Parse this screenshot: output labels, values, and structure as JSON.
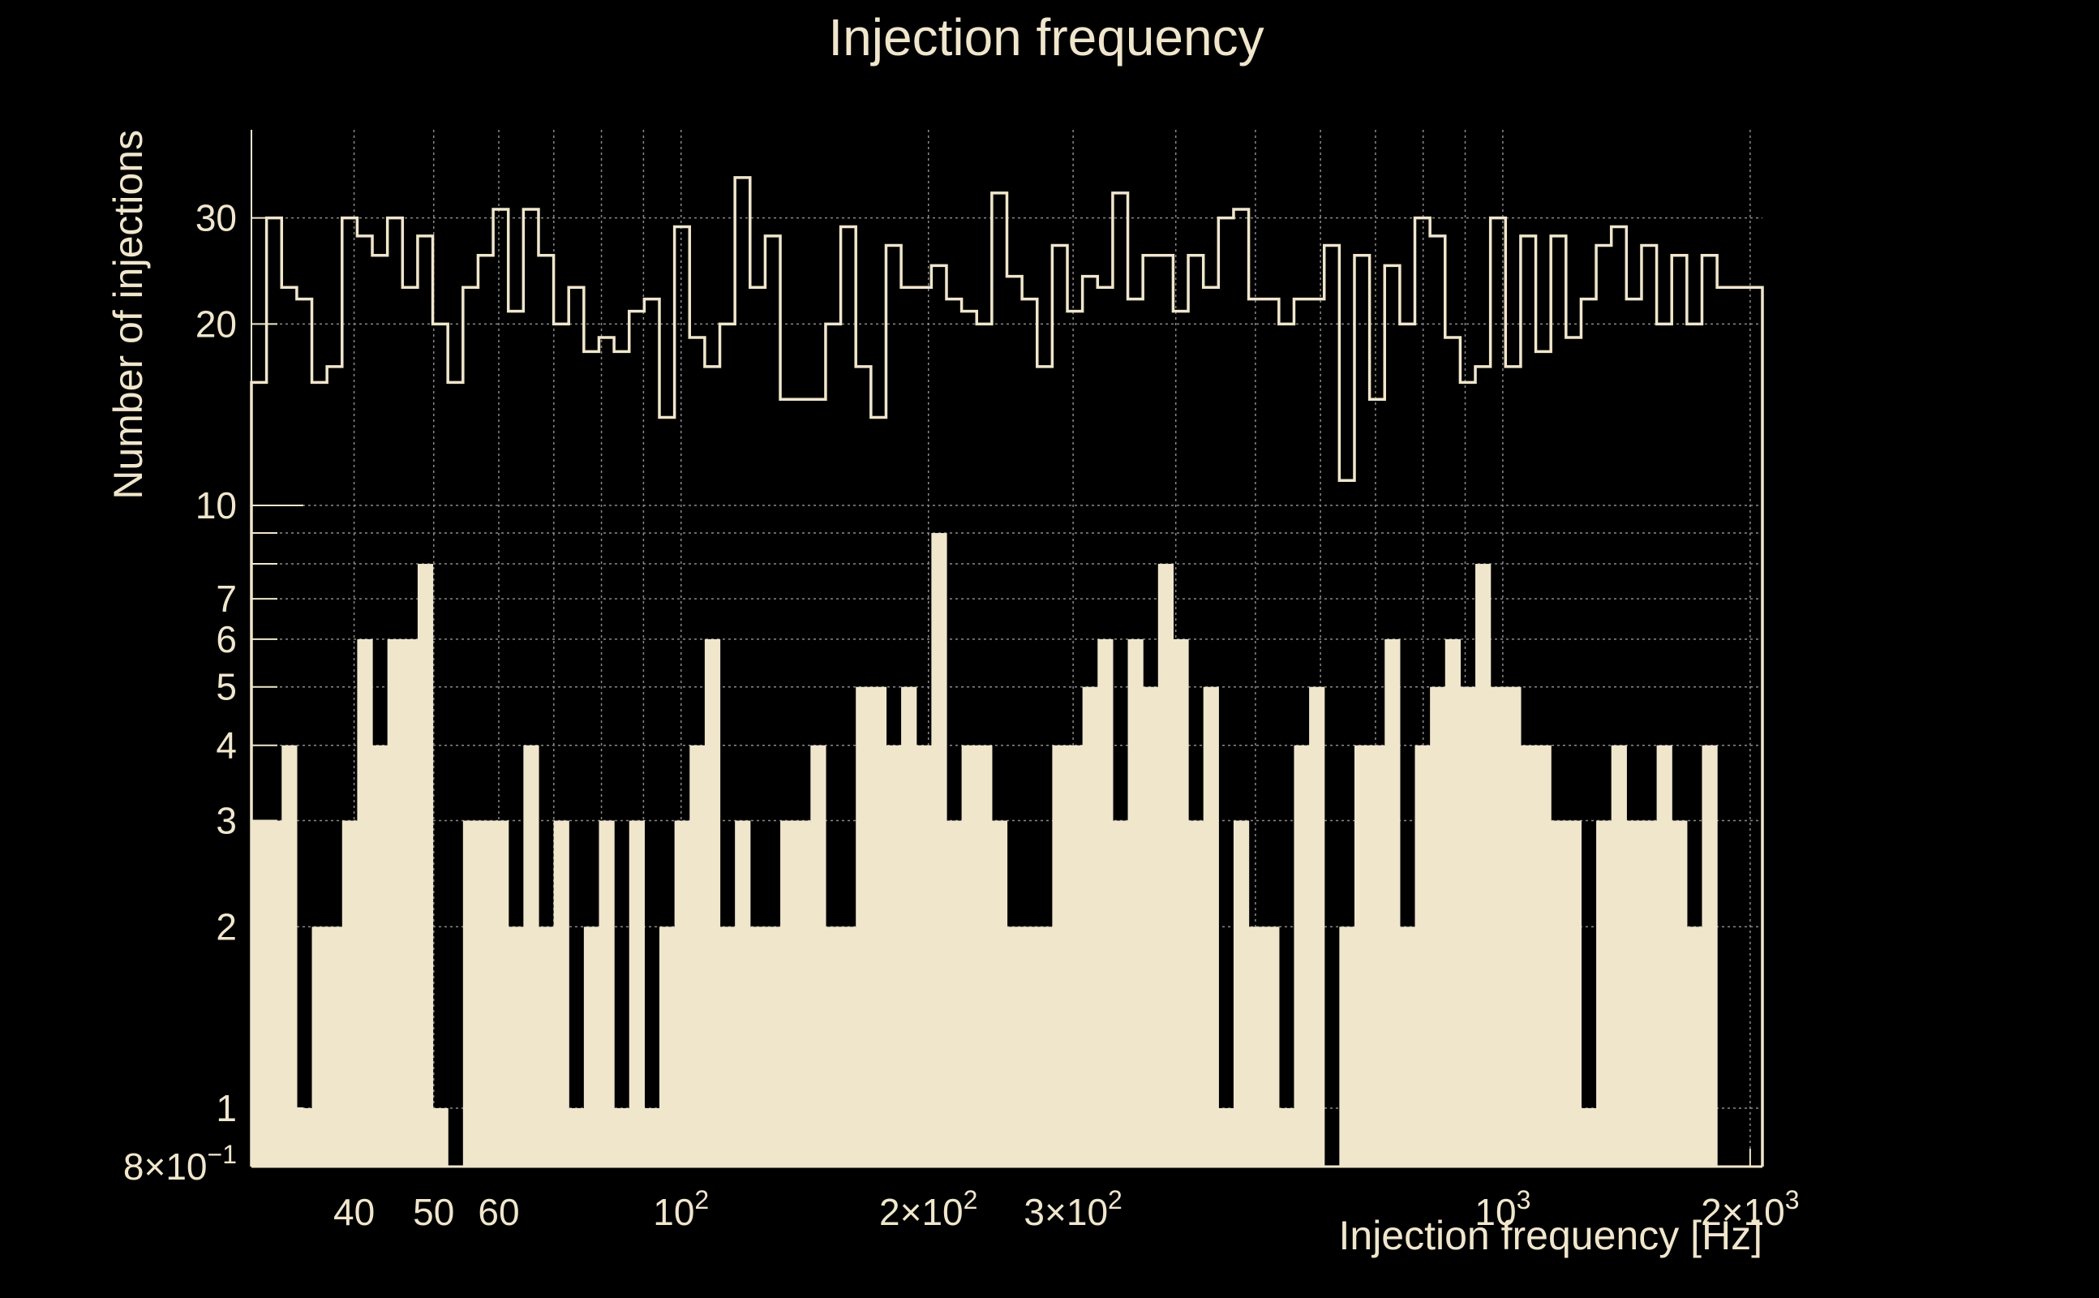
{
  "colors": {
    "background": "#000000",
    "foreground": "#f0e6cc",
    "grid": "#8a8a8a"
  },
  "chart_data": {
    "type": "bar",
    "title": "Injection frequency",
    "xlabel": "Injection frequency [Hz]",
    "ylabel": "Number of injections",
    "xscale": "log",
    "yscale": "log",
    "xlim": [
      30,
      2070
    ],
    "ylim": [
      0.8,
      42
    ],
    "grid": true,
    "xticks": [
      {
        "value": 40,
        "label": "40"
      },
      {
        "value": 50,
        "label": "50"
      },
      {
        "value": 60,
        "label": "60"
      },
      {
        "value": 100,
        "label": "10",
        "sup": "2"
      },
      {
        "value": 200,
        "label": "2×10",
        "sup": "2"
      },
      {
        "value": 300,
        "label": "3×10",
        "sup": "2"
      },
      {
        "value": 1000,
        "label": "10",
        "sup": "3"
      },
      {
        "value": 2000,
        "label": "2×10",
        "sup": "3"
      }
    ],
    "yticks": [
      {
        "value": 0.8,
        "label": "8×10",
        "sup": "−1"
      },
      {
        "value": 1,
        "label": "1"
      },
      {
        "value": 2,
        "label": "2"
      },
      {
        "value": 3,
        "label": "3"
      },
      {
        "value": 4,
        "label": "4"
      },
      {
        "value": 5,
        "label": "5"
      },
      {
        "value": 6,
        "label": "6"
      },
      {
        "value": 7,
        "label": "7"
      },
      {
        "value": 10,
        "label": "10"
      },
      {
        "value": 20,
        "label": "20"
      },
      {
        "value": 30,
        "label": "30"
      }
    ],
    "n_bins": 100,
    "series": [
      {
        "style": "step",
        "values": [
          16,
          30,
          23,
          22,
          16,
          17,
          30,
          28,
          26,
          30,
          23,
          28,
          20,
          16,
          23,
          26,
          31,
          21,
          31,
          26,
          20,
          23,
          18,
          19,
          18,
          21,
          22,
          14,
          29,
          19,
          17,
          20,
          35,
          23,
          28,
          15,
          15,
          15,
          20,
          29,
          17,
          14,
          27,
          23,
          23,
          25,
          22,
          21,
          20,
          33,
          24,
          22,
          17,
          27,
          21,
          24,
          23,
          33,
          22,
          26,
          26,
          21,
          26,
          23,
          30,
          31,
          22,
          22,
          20,
          22,
          22,
          27,
          11,
          26,
          15,
          25,
          20,
          30,
          28,
          19,
          16,
          17,
          30,
          17,
          28,
          18,
          28,
          19,
          22,
          27,
          29,
          22,
          27,
          20,
          26,
          20,
          26,
          23,
          23,
          23
        ]
      },
      {
        "style": "filled",
        "values": [
          3,
          3,
          4,
          1,
          2,
          2,
          3,
          6,
          4,
          6,
          6,
          8,
          1,
          0,
          3,
          3,
          3,
          2,
          4,
          2,
          3,
          1,
          2,
          3,
          1,
          3,
          1,
          2,
          3,
          4,
          6,
          2,
          3,
          2,
          2,
          3,
          3,
          4,
          2,
          2,
          5,
          5,
          4,
          5,
          4,
          9,
          3,
          4,
          4,
          3,
          2,
          2,
          2,
          4,
          4,
          5,
          6,
          3,
          6,
          5,
          8,
          6,
          3,
          5,
          1,
          3,
          2,
          2,
          1,
          4,
          5,
          0,
          2,
          4,
          4,
          6,
          2,
          4,
          5,
          6,
          5,
          8,
          5,
          5,
          4,
          4,
          3,
          3,
          1,
          3,
          4,
          3,
          3,
          4,
          3,
          2,
          4,
          0,
          0,
          0
        ]
      }
    ]
  }
}
